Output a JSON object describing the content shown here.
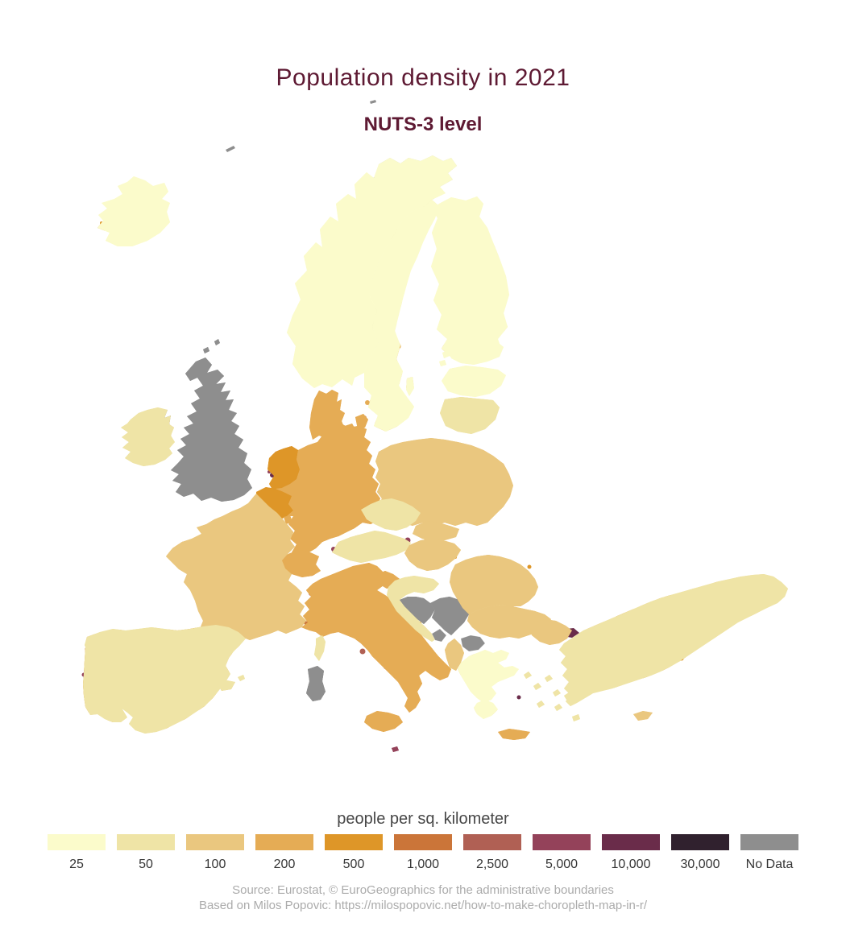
{
  "header": {
    "title": "Population density in 2021",
    "subtitle": "NUTS-3 level",
    "title_color": "#5E1A33"
  },
  "legend": {
    "title": "people per sq. kilometer",
    "items": [
      {
        "label": "25",
        "color": "#FBFBCB"
      },
      {
        "label": "50",
        "color": "#EFE4A6"
      },
      {
        "label": "100",
        "color": "#EAC77F"
      },
      {
        "label": "200",
        "color": "#E5AC55"
      },
      {
        "label": "500",
        "color": "#DE9628"
      },
      {
        "label": "1,000",
        "color": "#CB7539"
      },
      {
        "label": "2,500",
        "color": "#B06054"
      },
      {
        "label": "5,000",
        "color": "#94425A"
      },
      {
        "label": "10,000",
        "color": "#6A2C4A"
      },
      {
        "label": "30,000",
        "color": "#30212E"
      },
      {
        "label": "No Data",
        "color": "#8E8E8E"
      }
    ]
  },
  "footer": {
    "line1": "Source: Eurostat, © EuroGeographics for the administrative boundaries",
    "line2": "Based on Milos Popovic: https://milospopovic.net/how-to-make-choropleth-map-in-r/"
  },
  "map": {
    "sea_color": "#FFFFFF",
    "border_color": "#606060"
  }
}
